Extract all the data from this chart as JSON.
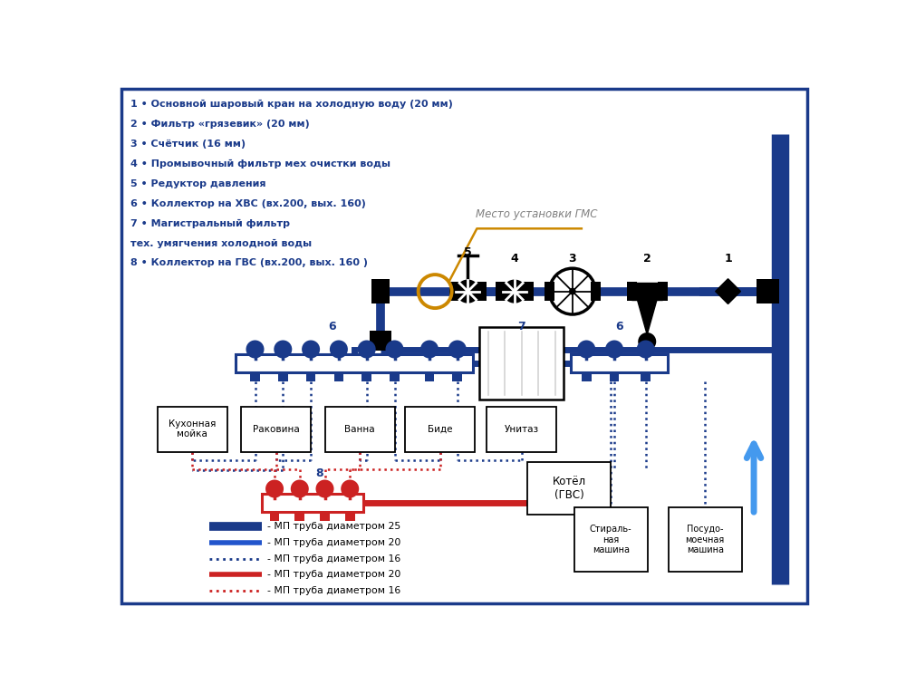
{
  "bg_color": "#ffffff",
  "border_color": "#1a3a8a",
  "title_items": [
    "1 • Основной шаровый кран на холодную воду (20 мм)",
    "2 • Фильтр «грязевик» (20 мм)",
    "3 • Счётчик (16 мм)",
    "4 • Промывочный фильтр мех очистки воды",
    "5 • Редуктор давления",
    "6 • Коллектор на ХВС (вх.200, вых. 160)",
    "7 • Магистральный фильтр",
    "тех. умягчения холодной воды",
    "8 • Коллектор на ГВС (вх.200, вых. 160 )"
  ],
  "legend_items": [
    {
      "label": "- МП труба диаметром 25",
      "color": "#1a3a8a",
      "lw": 7,
      "ls": "solid"
    },
    {
      "label": "- МП труба диаметром 20",
      "color": "#2255cc",
      "lw": 4,
      "ls": "solid"
    },
    {
      "label": "- МП труба диаметром 16",
      "color": "#1a3a8a",
      "lw": 2,
      "ls": "dotted"
    },
    {
      "label": "- МП труба диаметром 20",
      "color": "#cc2222",
      "lw": 4,
      "ls": "solid"
    },
    {
      "label": "- МП труба диаметром 16",
      "color": "#cc2222",
      "lw": 2,
      "ls": "dotted"
    }
  ],
  "appliances": [
    "Кухонная\nмойка",
    "Раковина",
    "Ванна",
    "Биде",
    "Унитаз"
  ],
  "sm_appliances": [
    "Стираль-\nная\nмашина",
    "Посудо-\nмоечная\nмашина"
  ],
  "main_pipe_color": "#1a3a8a",
  "cold_pipe_color": "#2255cc",
  "cold_dashed_color": "#1a3a8a",
  "hot_pipe_color": "#cc2222",
  "device_text_color": "#1a3a8a",
  "label_color": "#1a3a8a",
  "annotation_color": "#cc8800",
  "boiler_label": "Котёл\n(ГВС)",
  "mesto_text": "Место установки ГМС",
  "arrow_color": "#4499ee"
}
